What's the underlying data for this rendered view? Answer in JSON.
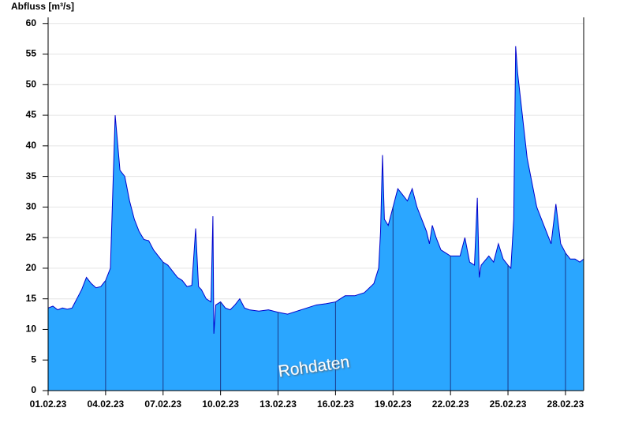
{
  "chart_data": {
    "type": "area",
    "y_label": "Abfluss [m³/s]",
    "annotation": "Rohdaten",
    "color": "#2aa6ff",
    "line_color": "#0000cc",
    "x": [
      0,
      0.25,
      0.5,
      0.75,
      1,
      1.25,
      1.5,
      1.75,
      2,
      2.25,
      2.5,
      2.75,
      3,
      3.25,
      3.4,
      3.5,
      3.75,
      4,
      4.25,
      4.5,
      4.75,
      5,
      5.25,
      5.5,
      5.75,
      6,
      6.25,
      6.5,
      6.75,
      7,
      7.25,
      7.5,
      7.7,
      7.85,
      8,
      8.25,
      8.5,
      8.6,
      8.65,
      8.75,
      9,
      9.25,
      9.5,
      9.75,
      10,
      10.25,
      10.5,
      11,
      11.5,
      12,
      12.5,
      13,
      13.5,
      14,
      14.5,
      15,
      15.5,
      16,
      16.5,
      17,
      17.25,
      17.35,
      17.45,
      17.55,
      17.75,
      18,
      18.25,
      18.5,
      18.75,
      19,
      19.25,
      19.5,
      19.75,
      19.9,
      20.05,
      20.25,
      20.5,
      20.75,
      21,
      21.5,
      21.75,
      22,
      22.25,
      22.4,
      22.5,
      22.6,
      23,
      23.25,
      23.5,
      23.75,
      24,
      24.15,
      24.3,
      24.4,
      24.5,
      24.75,
      25,
      25.25,
      25.5,
      25.75,
      26,
      26.25,
      26.5,
      26.75,
      27,
      27.25,
      27.5,
      27.75,
      27.95
    ],
    "values": [
      13.5,
      13.8,
      13.2,
      13.5,
      13.3,
      13.5,
      15,
      16.5,
      18.5,
      17.5,
      16.8,
      17,
      18,
      20,
      35,
      45,
      36,
      35,
      31,
      28,
      26,
      24.7,
      24.5,
      23,
      22,
      21,
      20.5,
      19.5,
      18.5,
      18,
      17,
      17.2,
      26.5,
      17,
      16.5,
      15,
      14.5,
      28.5,
      9.3,
      14,
      14.5,
      13.5,
      13.2,
      14,
      15,
      13.5,
      13.2,
      13,
      13.2,
      12.8,
      12.5,
      13,
      13.5,
      14,
      14.2,
      14.5,
      15.5,
      15.5,
      16,
      17.5,
      20,
      26,
      38.5,
      28,
      27,
      30,
      33,
      32,
      31,
      33,
      30,
      28,
      26,
      24,
      27,
      25,
      23,
      22.5,
      22,
      22,
      25,
      21,
      20.5,
      31.5,
      18.5,
      20.5,
      22,
      21,
      24,
      21.5,
      20.5,
      20,
      28,
      56.3,
      52,
      45,
      38,
      34,
      30,
      28,
      26,
      24,
      30.5,
      24,
      22.5,
      21.5,
      21.5,
      21,
      21.5
    ],
    "xlim": [
      0,
      27.95
    ],
    "ylim": [
      0,
      61
    ],
    "xticks": [
      {
        "value": 0,
        "label": "01.02.23"
      },
      {
        "value": 3,
        "label": "04.02.23"
      },
      {
        "value": 6,
        "label": "07.02.23"
      },
      {
        "value": 9,
        "label": "10.02.23"
      },
      {
        "value": 12,
        "label": "13.02.23"
      },
      {
        "value": 15,
        "label": "16.02.23"
      },
      {
        "value": 18,
        "label": "19.02.23"
      },
      {
        "value": 21,
        "label": "22.02.23"
      },
      {
        "value": 24,
        "label": "25.02.23"
      },
      {
        "value": 27,
        "label": "28.02.23"
      }
    ],
    "yticks": [
      0,
      5,
      10,
      15,
      20,
      25,
      30,
      35,
      40,
      45,
      50,
      55,
      60
    ],
    "grid": true
  }
}
